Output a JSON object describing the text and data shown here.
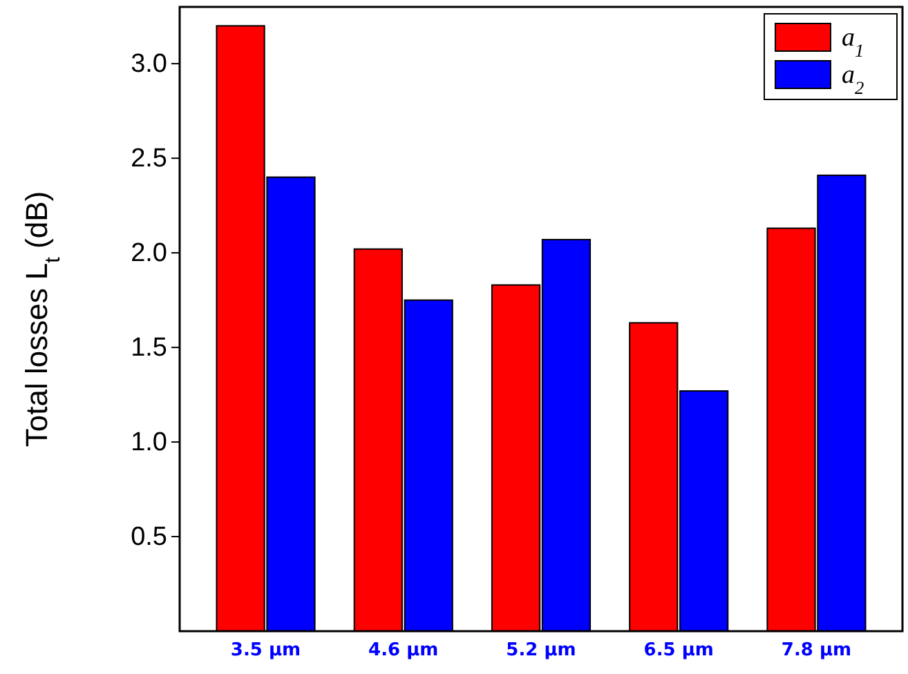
{
  "chart_data": {
    "type": "bar",
    "ylabel": "Total losses L$_{t}$ (dB)",
    "categories": [
      "3.5 µm",
      "4.6 µm",
      "5.2 µm",
      "6.5 µm",
      "7.8 µm"
    ],
    "series": [
      {
        "name": "a$_{1}$",
        "color": "#ff0000",
        "values": [
          3.2,
          2.02,
          1.83,
          1.63,
          2.13
        ]
      },
      {
        "name": "a$_{2}$",
        "color": "#0000ff",
        "values": [
          2.4,
          1.75,
          2.07,
          1.27,
          2.41
        ]
      }
    ],
    "ylim": [
      0,
      3.3
    ],
    "yticks": [
      0.5,
      {
        "value": 1,
        "label": "1.0"
      },
      1.5,
      {
        "value": 2,
        "label": "2.0"
      },
      2.5,
      {
        "value": 3,
        "label": "3.0"
      }
    ],
    "legend": "top right",
    "grid": false
  }
}
